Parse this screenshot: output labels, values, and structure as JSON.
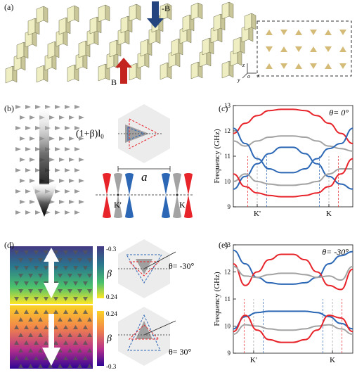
{
  "panels": {
    "a": {
      "label": "(a)",
      "field_down": "-B",
      "field_up": "B",
      "axes": {
        "z": "z",
        "y": "y",
        "o": "o",
        "x": "x"
      }
    },
    "b": {
      "label": "(b)",
      "formula": "(1+β)l",
      "formula_sub": "0",
      "lattice": "a",
      "valley_left": "K'",
      "valley_right": "K"
    },
    "c": {
      "label": "(c)"
    },
    "d": {
      "label": "(d)",
      "colorbar_top": {
        "max": "-0.3",
        "min": "0.24",
        "symbol": "β"
      },
      "colorbar_bottom": {
        "max": "0.24",
        "min": "-0.3",
        "symbol": "β"
      },
      "angle_top": "θ= -30°",
      "angle_bottom": "θ= 30°"
    },
    "e": {
      "label": "(e)"
    }
  },
  "colors": {
    "red": "#e8242b",
    "gray": "#a3a3a3",
    "blue": "#2c67b5",
    "prism_face": "#eeeec2",
    "hex_bg": "#ececec"
  },
  "chart_data": [
    {
      "type": "line",
      "title": "θ= 0°",
      "xlabel": "",
      "ylabel": "Frequency (GHz)",
      "ylim": [
        9,
        13
      ],
      "yticks": [
        9,
        10,
        11,
        12,
        13
      ],
      "xticks": [
        "K'",
        "K"
      ],
      "x": [
        0,
        0.1,
        0.2,
        0.3,
        0.4,
        0.5,
        0.6,
        0.7,
        0.8,
        0.9,
        1.0
      ],
      "series": [
        {
          "color": "red",
          "values": [
            11.9,
            12.3,
            12.6,
            12.8,
            12.85,
            12.85,
            12.8,
            12.6,
            12.3,
            11.9,
            11.5
          ]
        },
        {
          "color": "gray",
          "values": [
            11.6,
            11.4,
            11.6,
            11.75,
            11.8,
            11.8,
            11.75,
            11.6,
            11.4,
            11.3,
            11.2
          ]
        },
        {
          "color": "blue",
          "values": [
            12.1,
            11.5,
            10.9,
            10.5,
            10.35,
            10.35,
            10.5,
            10.9,
            11.3,
            11.5,
            12.1
          ]
        },
        {
          "color": "blue",
          "values": [
            9.7,
            10.2,
            10.7,
            11.1,
            11.35,
            11.35,
            11.1,
            10.7,
            10.2,
            9.9,
            9.7
          ]
        },
        {
          "color": "gray",
          "values": [
            10.0,
            10.3,
            10.0,
            9.9,
            9.85,
            9.85,
            9.9,
            10.0,
            10.3,
            10.5,
            10.5
          ]
        },
        {
          "color": "red",
          "values": [
            10.3,
            9.8,
            9.55,
            9.45,
            9.4,
            9.4,
            9.45,
            9.55,
            9.8,
            10.3,
            10.9
          ]
        }
      ]
    },
    {
      "type": "line",
      "title": "θ= -30°",
      "xlabel": "",
      "ylabel": "Frequency (GHz)",
      "ylim": [
        9,
        13
      ],
      "yticks": [
        9,
        10,
        11,
        12,
        13
      ],
      "xticks": [
        "K'",
        "K"
      ],
      "x": [
        0,
        0.1,
        0.2,
        0.3,
        0.4,
        0.5,
        0.6,
        0.7,
        0.8,
        0.9,
        1.0
      ],
      "series": [
        {
          "color": "blue",
          "values": [
            12.8,
            12.3,
            11.8,
            11.6,
            11.55,
            11.55,
            11.6,
            11.8,
            12.3,
            12.6,
            12.75
          ]
        },
        {
          "color": "red",
          "values": [
            12.3,
            11.5,
            12.0,
            12.45,
            12.65,
            12.65,
            12.45,
            12.0,
            11.5,
            11.35,
            12.1
          ]
        },
        {
          "color": "gray",
          "values": [
            12.2,
            11.85,
            11.8,
            11.9,
            11.95,
            11.95,
            11.9,
            11.8,
            11.85,
            11.7,
            12.2
          ]
        },
        {
          "color": "blue",
          "values": [
            9.9,
            10.35,
            10.5,
            10.55,
            10.55,
            10.55,
            10.55,
            10.5,
            10.35,
            10.1,
            9.9
          ]
        },
        {
          "color": "gray",
          "values": [
            9.7,
            10.05,
            10.0,
            9.9,
            9.85,
            9.85,
            9.9,
            10.0,
            10.05,
            9.9,
            9.7
          ]
        },
        {
          "color": "red",
          "values": [
            9.8,
            10.4,
            9.85,
            9.5,
            9.4,
            9.4,
            9.5,
            9.85,
            10.4,
            10.3,
            9.8
          ]
        }
      ]
    }
  ]
}
